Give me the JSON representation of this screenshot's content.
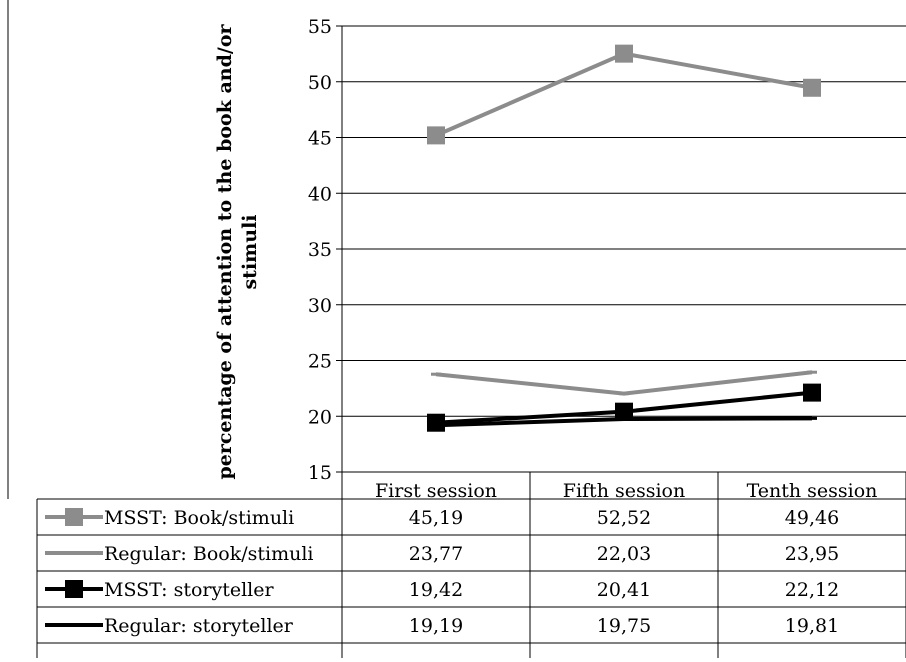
{
  "chart_data": {
    "type": "line",
    "ylabel": "percentage of attention to the book and/or stimuli",
    "ylabel_lines": [
      "percentage of attention to the book and/or",
      "stimuli"
    ],
    "ylim": [
      15,
      55
    ],
    "yticks": [
      15,
      20,
      25,
      30,
      35,
      40,
      45,
      50,
      55
    ],
    "grid": "horizontal",
    "legend": "data table below plot",
    "categories": [
      "First session",
      "Fifth session",
      "Tenth session"
    ],
    "series": [
      {
        "name": "MSST: Book/stimuli",
        "values": [
          45.19,
          52.52,
          49.46
        ],
        "labels": [
          "45,19",
          "52,52",
          "49,46"
        ],
        "color": "#8c8c8c",
        "marker": "square"
      },
      {
        "name": "Regular: Book/stimuli",
        "values": [
          23.77,
          22.03,
          23.95
        ],
        "labels": [
          "23,77",
          "22,03",
          "23,95"
        ],
        "color": "#8c8c8c",
        "marker": "dash"
      },
      {
        "name": "MSST: storyteller",
        "values": [
          19.42,
          20.41,
          22.12
        ],
        "labels": [
          "19,42",
          "20,41",
          "22,12"
        ],
        "color": "#000000",
        "marker": "square"
      },
      {
        "name": "Regular: storyteller",
        "values": [
          19.19,
          19.75,
          19.81
        ],
        "labels": [
          "19,19",
          "19,75",
          "19,81"
        ],
        "color": "#000000",
        "marker": "dash"
      }
    ]
  }
}
